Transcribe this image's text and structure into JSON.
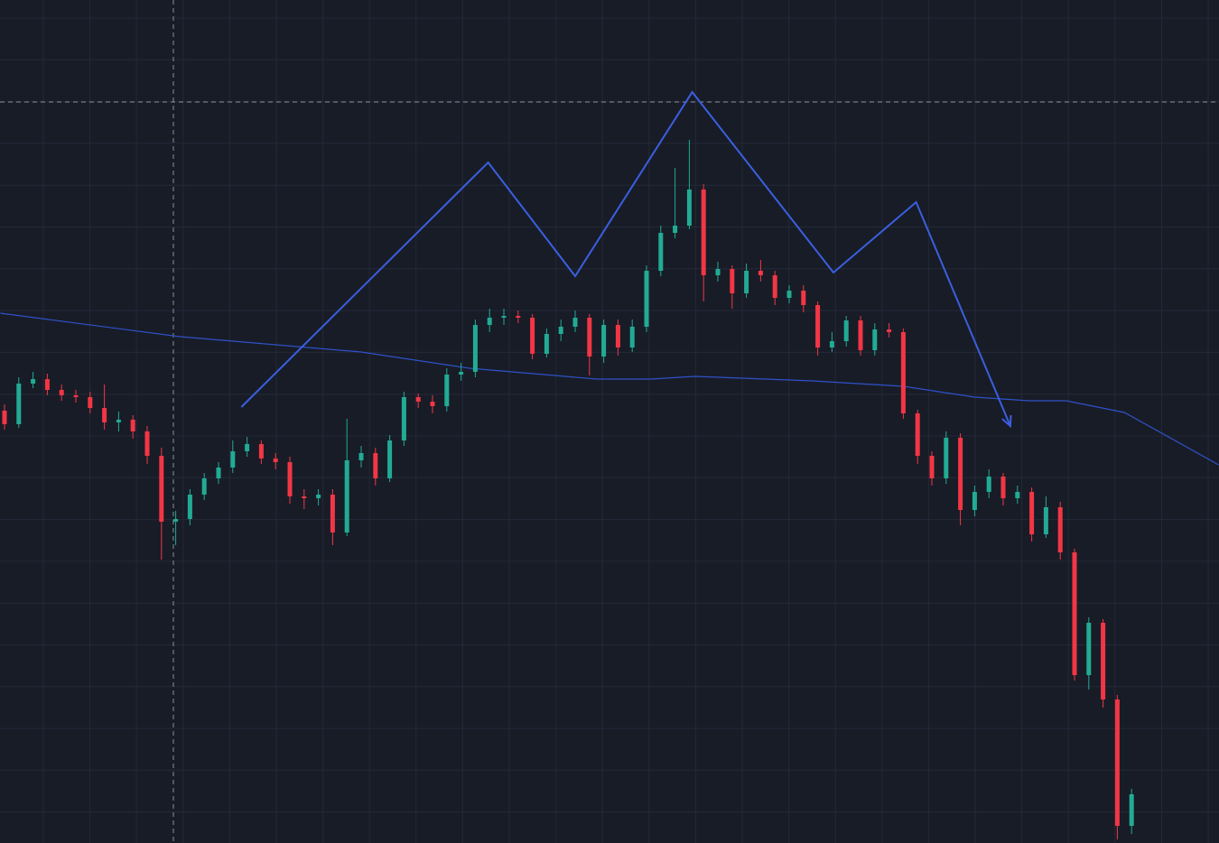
{
  "chart_data": {
    "type": "candlestick",
    "ylim": [
      0,
      934
    ],
    "grid": true,
    "up_color": "#22ab94",
    "down_color": "#f23645",
    "open": [
      479,
      464,
      509,
      514,
      502,
      496,
      494,
      482,
      466,
      469,
      456,
      429,
      356,
      359,
      386,
      404,
      416,
      434,
      442,
      426,
      422,
      384,
      382,
      386,
      344,
      424,
      432,
      404,
      446,
      494,
      489,
      484,
      519,
      522,
      574,
      582,
      584,
      582,
      542,
      564,
      572,
      582,
      539,
      574,
      549,
      572,
      634,
      676,
      684,
      724,
      629,
      636,
      609,
      634,
      629,
      604,
      612,
      596,
      549,
      556,
      579,
      546,
      569,
      566,
      476,
      429,
      404,
      449,
      369,
      389,
      406,
      382,
      389,
      342,
      372,
      322,
      186,
      244,
      159,
      19
    ],
    "high": [
      486,
      516,
      522,
      520,
      508,
      502,
      500,
      508,
      478,
      474,
      462,
      438,
      368,
      392,
      410,
      422,
      446,
      450,
      446,
      432,
      428,
      392,
      392,
      392,
      470,
      440,
      438,
      452,
      500,
      498,
      496,
      526,
      532,
      580,
      592,
      592,
      590,
      586,
      570,
      580,
      590,
      586,
      580,
      580,
      580,
      640,
      684,
      748,
      779,
      730,
      644,
      640,
      642,
      646,
      634,
      618,
      618,
      600,
      566,
      584,
      584,
      576,
      576,
      570,
      480,
      434,
      456,
      454,
      396,
      414,
      410,
      396,
      394,
      384,
      378,
      326,
      250,
      248,
      164,
      60
    ],
    "low": [
      458,
      460,
      504,
      496,
      490,
      488,
      476,
      458,
      456,
      448,
      420,
      314,
      330,
      352,
      380,
      398,
      410,
      428,
      420,
      414,
      376,
      370,
      374,
      330,
      340,
      416,
      396,
      400,
      440,
      482,
      476,
      478,
      512,
      516,
      566,
      574,
      576,
      536,
      538,
      556,
      566,
      518,
      532,
      540,
      544,
      566,
      628,
      670,
      680,
      600,
      622,
      592,
      604,
      622,
      596,
      598,
      588,
      540,
      544,
      550,
      540,
      540,
      560,
      470,
      420,
      396,
      398,
      352,
      362,
      382,
      374,
      376,
      334,
      338,
      314,
      180,
      170,
      150,
      4,
      10
    ],
    "close": [
      464,
      509,
      514,
      502,
      496,
      494,
      482,
      466,
      469,
      456,
      429,
      356,
      359,
      386,
      404,
      416,
      434,
      442,
      426,
      422,
      384,
      382,
      386,
      344,
      424,
      432,
      404,
      446,
      494,
      489,
      484,
      519,
      522,
      574,
      582,
      584,
      582,
      542,
      564,
      572,
      582,
      539,
      574,
      549,
      572,
      634,
      676,
      684,
      724,
      629,
      636,
      609,
      634,
      629,
      604,
      612,
      596,
      549,
      556,
      579,
      546,
      569,
      566,
      476,
      429,
      404,
      449,
      369,
      389,
      406,
      382,
      389,
      342,
      372,
      322,
      186,
      244,
      159,
      19,
      54
    ],
    "ma": {
      "color": "#2f52c9",
      "x": [
        -0.3,
        12.3,
        25,
        32.6,
        41.5,
        45.3,
        48.4,
        56.6,
        63,
        68,
        71.8,
        74.4,
        78.5,
        85.1
      ],
      "values": [
        587,
        561,
        544,
        526,
        514,
        514,
        517,
        512,
        506,
        494,
        490,
        490,
        477,
        419
      ]
    },
    "pattern": {
      "color": "#3a5fe0",
      "x": [
        16.6,
        33.9,
        40,
        48.2,
        58.1,
        63.9,
        70.5
      ],
      "values": [
        483,
        754,
        628,
        832,
        632,
        710,
        462
      ]
    }
  }
}
